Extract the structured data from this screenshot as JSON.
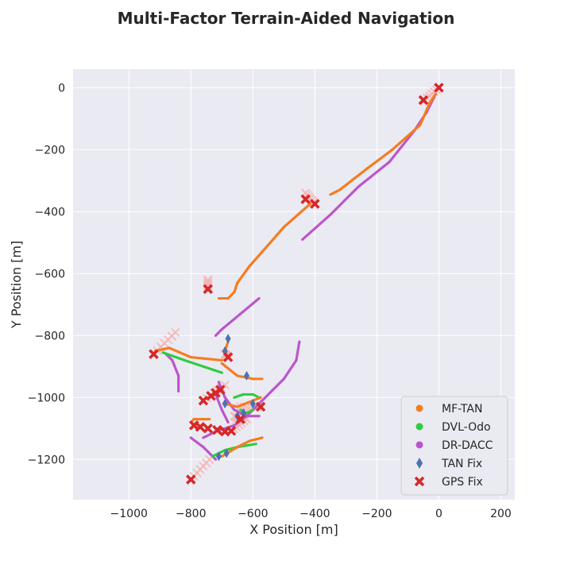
{
  "chart_data": {
    "type": "scatter",
    "title": "Multi-Factor Terrain-Aided Navigation",
    "xlabel": "X Position [m]",
    "ylabel": "Y Position [m]",
    "xlim": [
      -1180,
      245
    ],
    "ylim": [
      -1330,
      60
    ],
    "x_ticks": [
      -1000,
      -800,
      -600,
      -400,
      -200,
      0,
      200
    ],
    "y_ticks": [
      -1200,
      -1000,
      -800,
      -600,
      -400,
      -200,
      0
    ],
    "x_tick_labels": [
      "−1000",
      "−800",
      "−600",
      "−400",
      "−200",
      "0",
      "200"
    ],
    "y_tick_labels": [
      "−1200",
      "−1000",
      "−800",
      "−600",
      "−400",
      "−200",
      "0"
    ],
    "grid": true,
    "legend_position": "bottom-right",
    "colors": {
      "background": "#eaeaf2",
      "grid": "#ffffff",
      "mf_tan": "#f47c20",
      "dvl_odo": "#2ecc40",
      "dr_dacc": "#bb55cc",
      "tan_fix": "#4c72b0",
      "gps_fix": "#d62728",
      "gps_trail": "#f4b3b3"
    },
    "series": [
      {
        "name": "MF-TAN",
        "marker": "dot",
        "segments": [
          [
            [
              -10,
              -20
            ],
            [
              -30,
              -50
            ],
            [
              -60,
              -120
            ],
            [
              -150,
              -200
            ],
            [
              -230,
              -260
            ],
            [
              -320,
              -330
            ],
            [
              -350,
              -345
            ]
          ],
          [
            [
              -415,
              -375
            ],
            [
              -500,
              -450
            ],
            [
              -570,
              -530
            ],
            [
              -610,
              -575
            ],
            [
              -650,
              -630
            ],
            [
              -660,
              -660
            ],
            [
              -680,
              -680
            ],
            [
              -710,
              -680
            ]
          ],
          [
            [
              -915,
              -850
            ],
            [
              -870,
              -840
            ],
            [
              -800,
              -870
            ],
            [
              -700,
              -880
            ]
          ],
          [
            [
              -700,
              -890
            ],
            [
              -650,
              -930
            ],
            [
              -600,
              -940
            ],
            [
              -570,
              -940
            ]
          ],
          [
            [
              -690,
              -1020
            ],
            [
              -650,
              -1030
            ],
            [
              -600,
              -1010
            ],
            [
              -575,
              -1000
            ]
          ],
          [
            [
              -800,
              -1080
            ],
            [
              -790,
              -1070
            ],
            [
              -740,
              -1070
            ]
          ],
          [
            [
              -700,
              -1190
            ],
            [
              -650,
              -1160
            ],
            [
              -610,
              -1140
            ],
            [
              -570,
              -1130
            ]
          ],
          [
            [
              -680,
              -820
            ],
            [
              -690,
              -850
            ],
            [
              -680,
              -870
            ]
          ]
        ]
      },
      {
        "name": "DVL-Odo",
        "marker": "dot",
        "segments": [
          [
            [
              -890,
              -855
            ],
            [
              -820,
              -880
            ],
            [
              -760,
              -900
            ],
            [
              -700,
              -920
            ]
          ],
          [
            [
              -660,
              -1000
            ],
            [
              -630,
              -990
            ],
            [
              -600,
              -990
            ],
            [
              -580,
              -1000
            ]
          ],
          [
            [
              -730,
              -1190
            ],
            [
              -690,
              -1170
            ],
            [
              -650,
              -1160
            ],
            [
              -590,
              -1150
            ]
          ],
          [
            [
              -640,
              -1040
            ],
            [
              -620,
              -1050
            ],
            [
              -600,
              -1040
            ]
          ]
        ]
      },
      {
        "name": "DR-DACC",
        "marker": "dot",
        "segments": [
          [
            [
              -15,
              -30
            ],
            [
              -40,
              -80
            ],
            [
              -80,
              -140
            ],
            [
              -160,
              -240
            ],
            [
              -260,
              -320
            ],
            [
              -350,
              -410
            ],
            [
              -440,
              -490
            ]
          ],
          [
            [
              -720,
              -800
            ],
            [
              -700,
              -780
            ],
            [
              -640,
              -730
            ],
            [
              -580,
              -680
            ]
          ],
          [
            [
              -880,
              -860
            ],
            [
              -860,
              -880
            ],
            [
              -840,
              -930
            ],
            [
              -840,
              -980
            ]
          ],
          [
            [
              -710,
              -950
            ],
            [
              -690,
              -1000
            ],
            [
              -660,
              -1040
            ],
            [
              -620,
              -1060
            ],
            [
              -580,
              -1060
            ]
          ],
          [
            [
              -450,
              -820
            ],
            [
              -460,
              -880
            ],
            [
              -500,
              -940
            ],
            [
              -560,
              -1000
            ],
            [
              -620,
              -1060
            ],
            [
              -660,
              -1090
            ],
            [
              -720,
              -1110
            ],
            [
              -760,
              -1130
            ]
          ],
          [
            [
              -800,
              -1130
            ],
            [
              -760,
              -1160
            ],
            [
              -720,
              -1200
            ]
          ],
          [
            [
              -720,
              -990
            ],
            [
              -700,
              -1040
            ],
            [
              -680,
              -1080
            ]
          ]
        ]
      }
    ],
    "tan_fixes": [
      [
        -680,
        -810
      ],
      [
        -690,
        -850
      ],
      [
        -690,
        -1020
      ],
      [
        -650,
        -1060
      ],
      [
        -630,
        -1050
      ],
      [
        -710,
        -1190
      ],
      [
        -685,
        -1180
      ],
      [
        -600,
        -1020
      ],
      [
        -620,
        -930
      ]
    ],
    "gps_fixes": [
      [
        0,
        0
      ],
      [
        -50,
        -40
      ],
      [
        -400,
        -375
      ],
      [
        -430,
        -360
      ],
      [
        -745,
        -650
      ],
      [
        -920,
        -860
      ],
      [
        -680,
        -870
      ],
      [
        -760,
        -1010
      ],
      [
        -735,
        -995
      ],
      [
        -720,
        -985
      ],
      [
        -705,
        -975
      ],
      [
        -575,
        -1030
      ],
      [
        -640,
        -1070
      ],
      [
        -790,
        -1090
      ],
      [
        -770,
        -1095
      ],
      [
        -745,
        -1100
      ],
      [
        -715,
        -1105
      ],
      [
        -690,
        -1110
      ],
      [
        -670,
        -1108
      ],
      [
        -800,
        -1265
      ]
    ],
    "gps_trails": [
      [
        [
          -45,
          -40
        ],
        [
          0,
          0
        ]
      ],
      [
        [
          -430,
          -340
        ],
        [
          -400,
          -375
        ]
      ],
      [
        [
          -745,
          -620
        ],
        [
          -745,
          -650
        ]
      ],
      [
        [
          -920,
          -860
        ],
        [
          -850,
          -790
        ]
      ],
      [
        [
          -690,
          -860
        ],
        [
          -680,
          -870
        ]
      ],
      [
        [
          -760,
          -1010
        ],
        [
          -690,
          -960
        ]
      ],
      [
        [
          -640,
          -1030
        ],
        [
          -575,
          -1030
        ]
      ],
      [
        [
          -660,
          -1060
        ],
        [
          -640,
          -1070
        ]
      ],
      [
        [
          -800,
          -1265
        ],
        [
          -740,
          -1200
        ]
      ],
      [
        [
          -670,
          -1108
        ],
        [
          -620,
          -1070
        ]
      ]
    ]
  }
}
